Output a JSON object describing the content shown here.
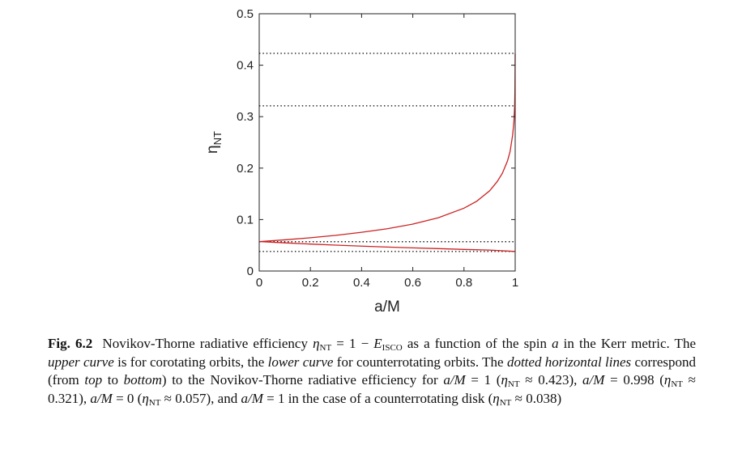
{
  "chart_data": {
    "type": "line",
    "xlabel": "a/M",
    "ylabel": "η",
    "ylabel_sub": "NT",
    "xlim": [
      0,
      1
    ],
    "ylim": [
      0,
      0.5
    ],
    "xticks": [
      {
        "value": 0,
        "label": "0"
      },
      {
        "value": 0.2,
        "label": "0.2"
      },
      {
        "value": 0.4,
        "label": "0.4"
      },
      {
        "value": 0.6,
        "label": "0.6"
      },
      {
        "value": 0.8,
        "label": "0.8"
      },
      {
        "value": 1,
        "label": "1"
      }
    ],
    "yticks": [
      {
        "value": 0,
        "label": "0"
      },
      {
        "value": 0.1,
        "label": "0.1"
      },
      {
        "value": 0.2,
        "label": "0.2"
      },
      {
        "value": 0.3,
        "label": "0.3"
      },
      {
        "value": 0.4,
        "label": "0.4"
      },
      {
        "value": 0.5,
        "label": "0.5"
      }
    ],
    "series": [
      {
        "color": "#cc2222",
        "x": [
          0,
          0.1,
          0.2,
          0.3,
          0.4,
          0.5,
          0.6,
          0.7,
          0.8,
          0.85,
          0.9,
          0.93,
          0.95,
          0.97,
          0.98,
          0.99,
          0.995,
          0.998,
          0.999,
          1.0
        ],
        "y": [
          0.0572,
          0.0606,
          0.0646,
          0.0694,
          0.0753,
          0.0821,
          0.0912,
          0.1036,
          0.1221,
          0.1357,
          0.1558,
          0.174,
          0.1901,
          0.214,
          0.2321,
          0.264,
          0.29,
          0.321,
          0.35,
          0.423
        ]
      },
      {
        "color": "#cc2222",
        "x": [
          0,
          0.1,
          0.2,
          0.3,
          0.4,
          0.5,
          0.6,
          0.7,
          0.8,
          0.9,
          1.0
        ],
        "y": [
          0.0572,
          0.0547,
          0.0524,
          0.0503,
          0.0484,
          0.0466,
          0.045,
          0.0435,
          0.042,
          0.0407,
          0.038
        ]
      }
    ],
    "hlines": [
      {
        "y": 0.423,
        "style": "dotted"
      },
      {
        "y": 0.321,
        "style": "dotted"
      },
      {
        "y": 0.057,
        "style": "dotted"
      },
      {
        "y": 0.038,
        "style": "dotted"
      }
    ]
  },
  "caption": {
    "fig_label": "Fig. 6.2",
    "p1": "Novikov-Thorne radiative efficiency ",
    "eq1_eta": "η",
    "eq1_sub": "NT",
    "eq1_mid": " = 1 − ",
    "eq1_e": "E",
    "eq1_esub": "ISCO",
    "p2": " as a function of the spin ",
    "var_a": "a",
    "p3": " in the Kerr metric. The ",
    "i_upper": "upper curve",
    "p4": " is for corotating orbits, the ",
    "i_lower": "lower curve",
    "p5": " for counterrotating orbits. The ",
    "i_dotted": "dotted horizontal lines",
    "p6": " correspond (from ",
    "i_top": "top",
    "p7": " to ",
    "i_bottom": "bottom",
    "p8": ") to the Novikov-Thorne radiative efficiency for ",
    "c1_expr": "a/M",
    "c1_val": " = 1 (",
    "c1_eta": "η",
    "c1_sub": "NT",
    "c1_approx": " ≈ 0.423), ",
    "c2_expr": "a/M",
    "c2_val": " = 0.998 (",
    "c2_eta": "η",
    "c2_sub": "NT",
    "c2_approx": " ≈ 0.321), ",
    "c3_expr": "a/M",
    "c3_val": " = 0 (",
    "c3_eta": "η",
    "c3_sub": "NT",
    "c3_approx": " ≈ 0.057), and ",
    "c4_expr": "a/M",
    "c4_val": " =  1 in the case of a counterrotating disk (",
    "c4_eta": "η",
    "c4_sub": "NT",
    "c4_approx": " ≈ 0.038)"
  }
}
